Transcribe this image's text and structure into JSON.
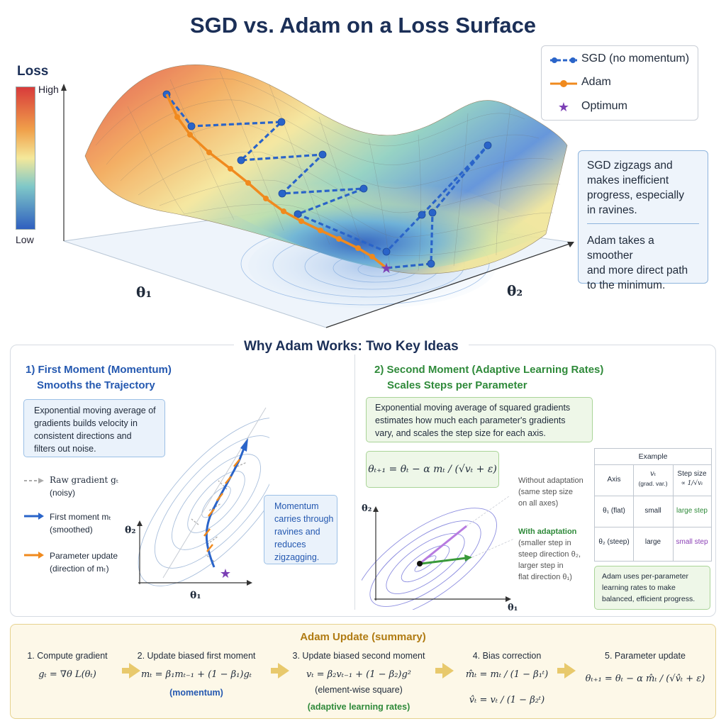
{
  "title": "SGD vs. Adam on a Loss Surface",
  "colorbar": {
    "label": "Loss",
    "high": "High",
    "low": "Low"
  },
  "axes": {
    "theta1": "θ₁",
    "theta2": "θ₂"
  },
  "legend": {
    "sgd": "SGD (no momentum)",
    "adam": "Adam",
    "optimum": "Optimum"
  },
  "colors": {
    "sgd": "#2a64c9",
    "adam": "#f08a1e",
    "optimum": "#7b3fb5",
    "first_moment": "#2a64c9",
    "update": "#f08a1e",
    "adaptive": "#3a9a3a"
  },
  "note": {
    "sgd": [
      "SGD zigzags and",
      "makes inefficient",
      "progress, especially",
      "in ravines."
    ],
    "adam": [
      "Adam takes a smoother",
      "and more direct path",
      "to the minimum."
    ]
  },
  "why": {
    "title": "Why Adam Works: Two Key Ideas",
    "left": {
      "heading1": "1) First Moment (Momentum)",
      "heading2": "Smooths the Trajectory",
      "box": [
        "Exponential moving average of",
        "gradients builds velocity in",
        "consistent directions and",
        "filters out noise."
      ],
      "legend_raw": [
        "Raw gradient gₜ",
        "(noisy)"
      ],
      "legend_first": [
        "First moment mₜ",
        "(smoothed)"
      ],
      "legend_update": [
        "Parameter update",
        "(direction of mₜ)"
      ],
      "callout": [
        "Momentum",
        "carries through",
        "ravines and",
        "reduces",
        "zigzagging."
      ],
      "xlabel": "θ₁",
      "ylabel": "θ₂"
    },
    "right": {
      "heading1": "2) Second Moment (Adaptive Learning Rates)",
      "heading2": "Scales Steps per Parameter",
      "box": [
        "Exponential moving average of squared gradients",
        "estimates how much each parameter's gradients",
        "vary, and scales the step size for each axis."
      ],
      "formula": "θₜ₊₁ = θₜ − α mₜ / (√vₜ + ε)",
      "without": [
        "Without adaptation",
        "(same step size",
        "on all axes)"
      ],
      "with_title": "With adaptation",
      "with": [
        "(smaller step in",
        "steep direction θ₂,",
        "larger step in",
        "flat direction θ₁)"
      ],
      "xlabel": "θ₁",
      "ylabel": "θ₂",
      "table": {
        "title": "Example",
        "headers": [
          "Axis",
          "vₜ",
          "(grad. var.)",
          "Step size",
          "∝ 1/√vₜ"
        ],
        "rows": [
          {
            "axis": "θ₁ (flat)",
            "v": "small",
            "step": "large step"
          },
          {
            "axis": "θ₂ (steep)",
            "v": "large",
            "step": "small step"
          }
        ]
      },
      "summary": [
        "Adam uses per-parameter",
        "learning rates to make",
        "balanced, efficient progress."
      ]
    }
  },
  "update": {
    "title": "Adam Update (summary)",
    "steps": [
      {
        "label": "1. Compute gradient",
        "eq": "gₜ = ∇θ L(θₜ)"
      },
      {
        "label": "2. Update biased first moment",
        "eq": "mₜ = β₁mₜ₋₁ + (1 − β₁)gₜ",
        "tag": "(momentum)"
      },
      {
        "label": "3. Update biased second moment",
        "eq": "vₜ = β₂vₜ₋₁ + (1 − β₂)g²",
        "sub": "(element-wise square)",
        "tag": "(adaptive learning rates)"
      },
      {
        "label": "4. Bias correction",
        "eq1": "m̂ₜ = mₜ / (1 − β₁ᵗ)",
        "eq2": "v̂ₜ = vₜ / (1 − β₂ᵗ)"
      },
      {
        "label": "5. Parameter update",
        "eq": "θₜ₊₁ = θₜ − α m̂ₜ / (√v̂ₜ + ε)"
      }
    ]
  }
}
